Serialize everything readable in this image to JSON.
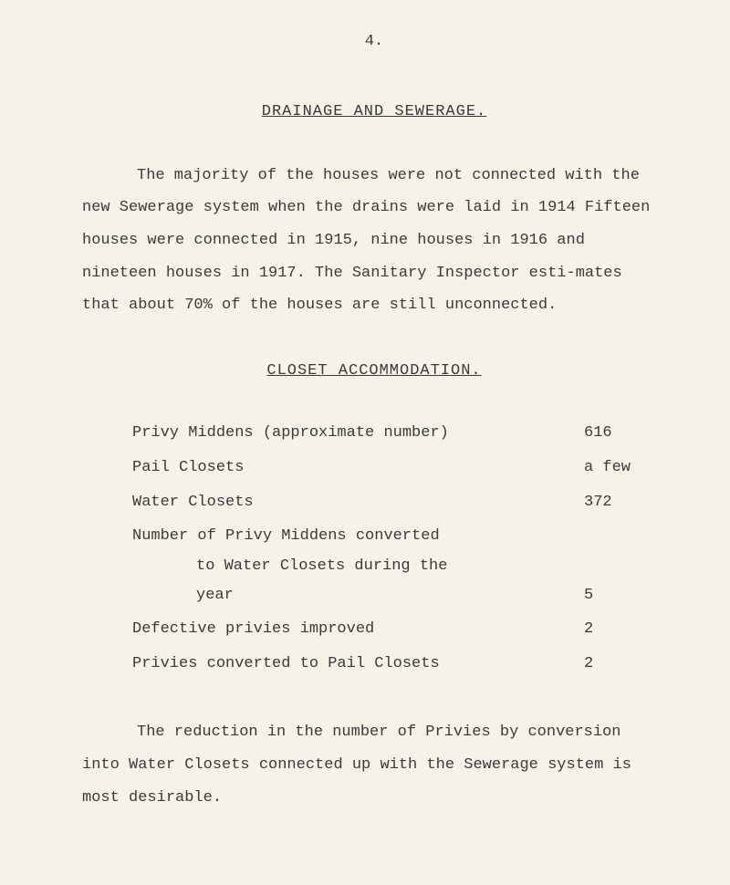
{
  "page_number": "4.",
  "heading1": "DRAINAGE  AND  SEWERAGE.",
  "para1": "The majority of the houses were not connected with the new Sewerage system when the drains were laid in 1914 Fifteen houses were connected in 1915, nine houses in 1916 and nineteen houses in 1917.   The Sanitary Inspector esti-mates that about 70% of the houses are still unconnected.",
  "heading2": "CLOSET ACCOMMODATION.",
  "rows": [
    {
      "label": "Privy Middens (approximate number)",
      "value": "616"
    },
    {
      "label": "Pail Closets",
      "value": "a few"
    },
    {
      "label": "Water Closets",
      "value": "372"
    }
  ],
  "multi": {
    "l1": "Number of Privy Middens converted",
    "l2": "to Water Closets during the",
    "l3": "year",
    "value": "5"
  },
  "rows2": [
    {
      "label": "Defective privies improved",
      "value": "2"
    },
    {
      "label": "Privies converted to Pail Closets",
      "value": "2"
    }
  ],
  "para2": "The reduction in the number of Privies by conversion into Water Closets connected up with the Sewerage system is most desirable.",
  "colors": {
    "background": "#f5f2e8",
    "text": "#3a3a3a"
  },
  "font": {
    "family": "Courier New",
    "size_pt": 13
  }
}
